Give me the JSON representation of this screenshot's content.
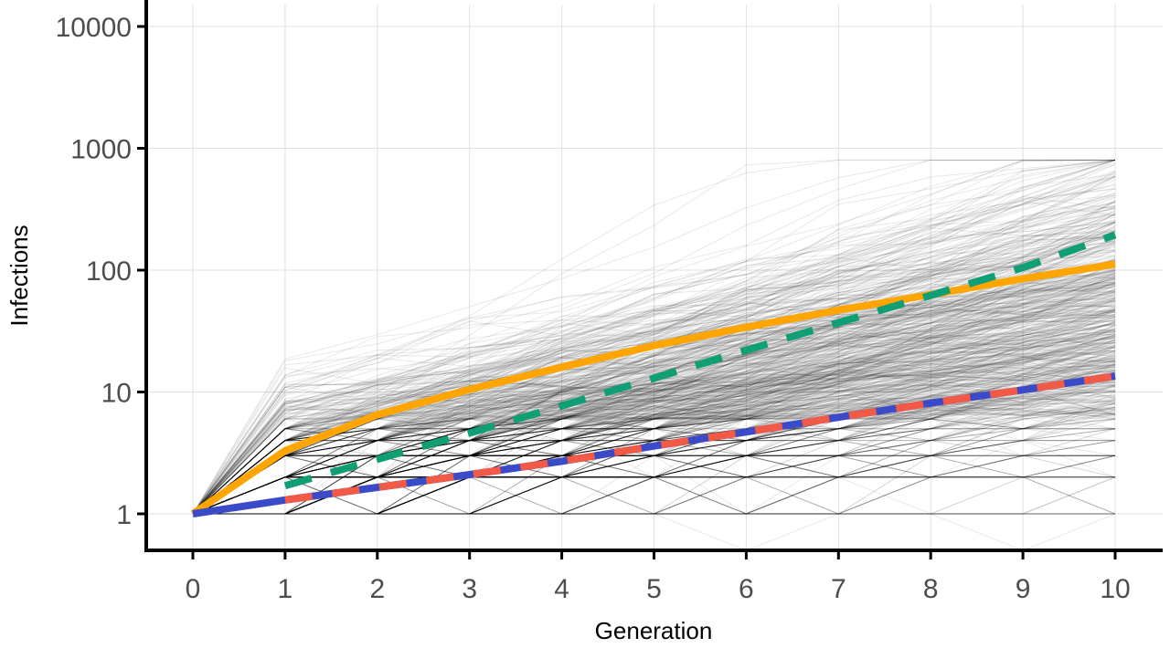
{
  "chart_data": {
    "type": "line",
    "xlabel": "Generation",
    "ylabel": "Infections",
    "x": [
      0,
      1,
      2,
      3,
      4,
      5,
      6,
      7,
      8,
      9,
      10
    ],
    "xlim": [
      -0.5,
      10.5
    ],
    "y_scale": "log10",
    "ylim": [
      0.5,
      15000
    ],
    "y_ticks": [
      1,
      10,
      100,
      1000,
      10000
    ],
    "y_tick_labels": [
      "1",
      "10",
      "100",
      "1000",
      "10000"
    ],
    "x_tick_labels": [
      "0",
      "1",
      "2",
      "3",
      "4",
      "5",
      "6",
      "7",
      "8",
      "9",
      "10"
    ],
    "grid": true,
    "legend": "none",
    "series": [
      {
        "color": "#FFA500",
        "style": "solid",
        "values": [
          1,
          3.3,
          6.5,
          10.5,
          16,
          24,
          34,
          47,
          63,
          85,
          112
        ]
      },
      {
        "color": "#109E74",
        "style": "dashed",
        "values": [
          null,
          1.7,
          2.8,
          4.6,
          7.7,
          13,
          22,
          37,
          62,
          105,
          195
        ]
      },
      {
        "color": "#3B4BC8",
        "style": "solid",
        "values": [
          1,
          1.3,
          1.65,
          2.1,
          2.7,
          3.6,
          4.7,
          6.2,
          8.1,
          10.4,
          13.5
        ]
      },
      {
        "color": "#F05A46",
        "style": "dashed",
        "values": [
          null,
          1.3,
          1.65,
          2.1,
          2.7,
          3.6,
          4.7,
          6.2,
          8.1,
          10.4,
          13.5
        ]
      }
    ],
    "simulated_trajectories": {
      "color": "#000000",
      "count": 700,
      "generations": 10,
      "median_end_value": 60,
      "max_end_value": 800,
      "zero_floor_value": 0.5
    }
  }
}
